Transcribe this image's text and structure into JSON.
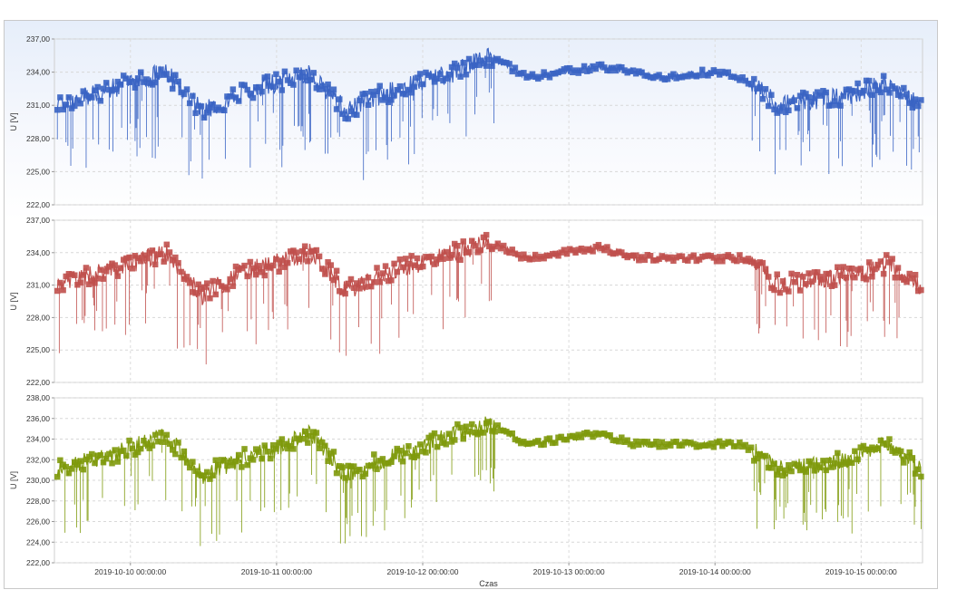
{
  "chart_data": [
    {
      "type": "line",
      "ylabel": "U [V]",
      "xlabel": "",
      "ylim": [
        222,
        237
      ],
      "yticks": [
        "222,00",
        "225,00",
        "228,00",
        "231,00",
        "234,00",
        "237,00"
      ],
      "grid": true,
      "series": [
        {
          "color": "#3a64c4",
          "x": [
            0,
            0.25,
            0.5,
            0.75,
            1,
            1.25,
            1.5,
            1.75,
            2,
            2.25,
            2.5,
            2.75,
            3,
            3.25,
            3.5,
            3.75,
            4,
            4.25,
            4.5,
            4.75,
            5,
            5.25,
            5.5,
            5.75,
            5.98
          ],
          "values": [
            231,
            232,
            233,
            234,
            230.5,
            232,
            233,
            234,
            230.5,
            232,
            233,
            234,
            235.5,
            233.5,
            234,
            234.5,
            234,
            233.5,
            234,
            233.5,
            231,
            231.5,
            232,
            233,
            231
          ]
        }
      ]
    },
    {
      "type": "line",
      "ylabel": "U [V]",
      "xlabel": "",
      "ylim": [
        222,
        237
      ],
      "yticks": [
        "222,00",
        "225,00",
        "228,00",
        "231,00",
        "234,00",
        "237,00"
      ],
      "grid": true,
      "series": [
        {
          "color": "#c0504d",
          "x": [
            0,
            0.25,
            0.5,
            0.75,
            1,
            1.25,
            1.5,
            1.75,
            2,
            2.25,
            2.5,
            2.75,
            3,
            3.25,
            3.5,
            3.75,
            4,
            4.25,
            4.5,
            4.75,
            5,
            5.25,
            5.5,
            5.75,
            5.98
          ],
          "values": [
            231,
            232,
            233,
            234,
            230,
            232,
            233,
            234,
            230.5,
            232,
            233,
            234,
            235,
            233.5,
            234,
            234.5,
            233.5,
            233.5,
            233.5,
            233.5,
            231,
            231.5,
            232,
            233,
            231
          ]
        }
      ]
    },
    {
      "type": "line",
      "ylabel": "U [V]",
      "xlabel": "Czas",
      "ylim": [
        222,
        238
      ],
      "yticks": [
        "222,00",
        "224,00",
        "226,00",
        "228,00",
        "230,00",
        "232,00",
        "234,00",
        "236,00",
        "238,00"
      ],
      "grid": true,
      "xticks": [
        "2019-10-10 00:00:00",
        "2019-10-11 00:00:00",
        "2019-10-12 00:00:00",
        "2019-10-13 00:00:00",
        "2019-10-14 00:00:00",
        "2019-10-15 00:00:00"
      ],
      "series": [
        {
          "color": "#7f9a0c",
          "x": [
            0,
            0.25,
            0.5,
            0.75,
            1,
            1.25,
            1.5,
            1.75,
            2,
            2.25,
            2.5,
            2.75,
            3,
            3.25,
            3.5,
            3.75,
            4,
            4.25,
            4.5,
            4.75,
            5,
            5.25,
            5.5,
            5.75,
            5.98
          ],
          "values": [
            231,
            232,
            233,
            234.5,
            230.5,
            232,
            233,
            234.5,
            230.5,
            232,
            233,
            234.5,
            235.5,
            233.5,
            234,
            234.5,
            233.5,
            233.5,
            233.5,
            233.5,
            231,
            231.5,
            232,
            233.5,
            231
          ]
        }
      ]
    }
  ]
}
